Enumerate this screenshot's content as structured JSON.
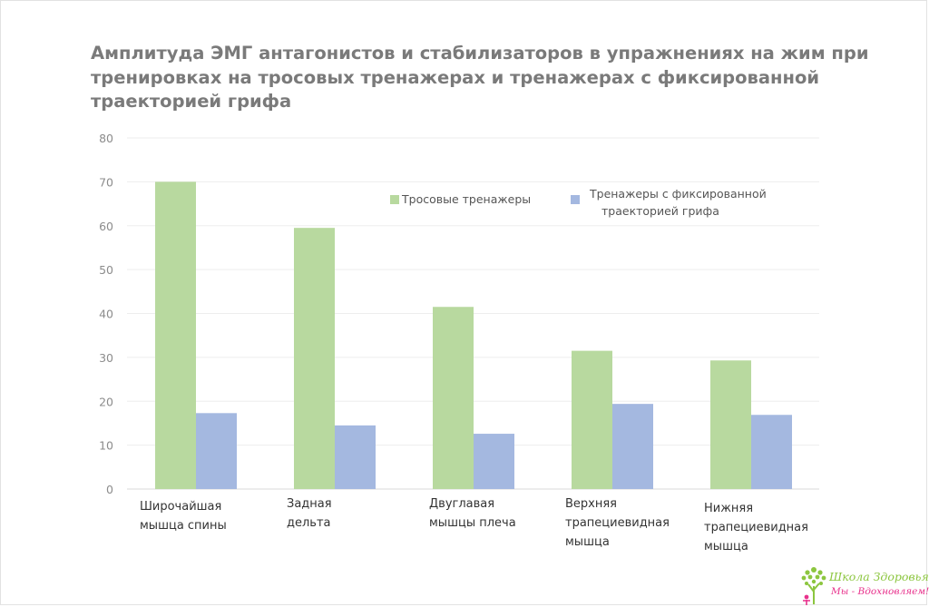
{
  "logo": {
    "line1": "Школа Здоровья",
    "line2": "Мы - Вдохновляем!"
  },
  "chart_data": {
    "type": "bar",
    "title_lines": [
      "Амплитуда ЭМГ антагонистов и стабилизаторов в упражнениях на жим при",
      "тренировках на тросовых тренажерах и тренажерах с фиксированной",
      "траекторией грифа"
    ],
    "categories": [
      [
        "Широчайшая",
        "мышца спины"
      ],
      [
        "Задная",
        "дельта"
      ],
      [
        "Двуглавая",
        "мышцы плеча"
      ],
      [
        "Верхняя",
        "трапециевидная",
        "мышца"
      ],
      [
        "Нижняя",
        "трапециевидная",
        "мышца"
      ]
    ],
    "series": [
      {
        "name_lines": [
          "Тросовые тренажеры"
        ],
        "color": "#b8d99f",
        "values": [
          70,
          59.5,
          41.5,
          31.5,
          29.3
        ]
      },
      {
        "name_lines": [
          "Тренажеры с фиксированной",
          "траекторией грифа"
        ],
        "color": "#a4b8e0",
        "values": [
          17.3,
          14.5,
          12.6,
          19.4,
          16.9
        ]
      }
    ],
    "yticks": [
      "0",
      "10",
      "20",
      "30",
      "40",
      "50",
      "60",
      "70",
      "80"
    ],
    "ylim": [
      0,
      80
    ],
    "grid": true,
    "legend_position": "top-right"
  }
}
